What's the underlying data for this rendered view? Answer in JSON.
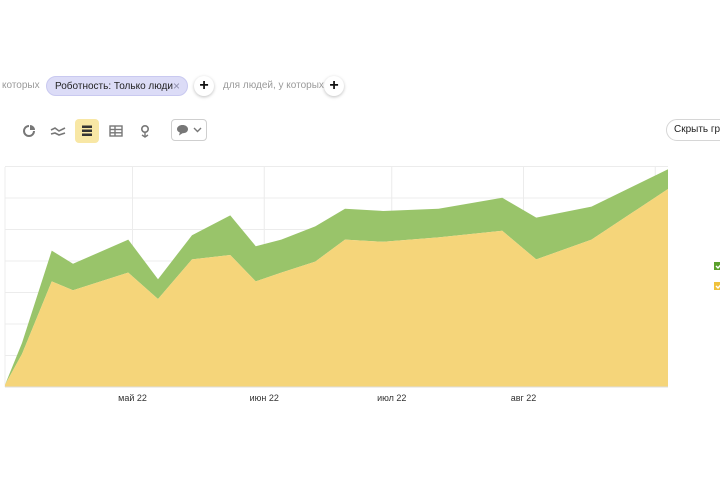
{
  "filters": {
    "left_text": "которых",
    "chip_label": "Роботность: Только люди",
    "chip_close": "×",
    "middle_text": "для людей, у которых",
    "add_label": "+"
  },
  "toolbar": {
    "icons": [
      "pie-chart-icon",
      "line-chart-icon",
      "stacked-area-chart-icon",
      "table-icon",
      "map-icon"
    ],
    "active": "stacked-area-chart-icon",
    "comments_icon": "speech-bubble-icon",
    "hide_chart_label": "Скрыть гр"
  },
  "colors": {
    "bottom_series": "#f5d57a",
    "top_series": "#99c46a",
    "chip_bg": "#dcdcf7",
    "active_tool": "#f8e7a5"
  },
  "chart_data": {
    "type": "area",
    "stacked": true,
    "x_tick_labels": [
      "май 22",
      "июн 22",
      "июл 22",
      "авг 22"
    ],
    "x": [
      "2022-04-01",
      "2022-04-05",
      "2022-04-12",
      "2022-04-17",
      "2022-04-30",
      "2022-05-07",
      "2022-05-15",
      "2022-05-24",
      "2022-05-30",
      "2022-06-05",
      "2022-06-13",
      "2022-06-20",
      "2022-06-29",
      "2022-07-12",
      "2022-07-27",
      "2022-08-04",
      "2022-08-17",
      "2022-09-04"
    ],
    "series": [
      {
        "values": [
          1,
          15,
          48,
          44,
          52,
          40,
          58,
          60,
          48,
          52,
          57,
          67,
          66,
          68,
          71,
          58,
          67,
          90
        ]
      },
      {
        "values": [
          0,
          5,
          14,
          12,
          15,
          9,
          11,
          18,
          16,
          15,
          16,
          14,
          14,
          13,
          15,
          19,
          15,
          9
        ]
      }
    ],
    "grid": true,
    "y_tick_labels_visible": false
  }
}
